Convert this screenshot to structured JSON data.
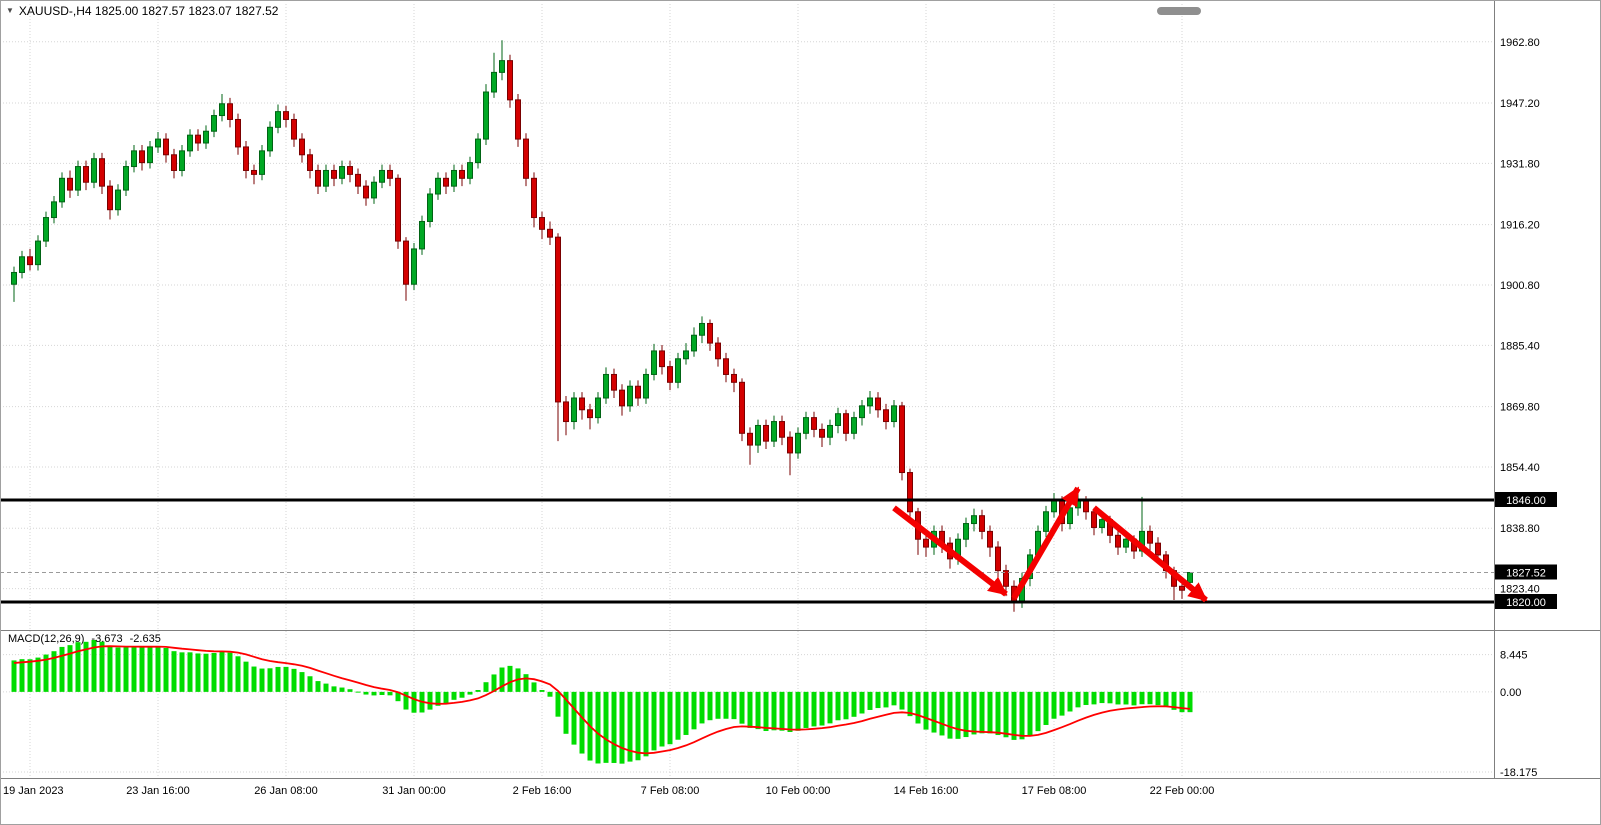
{
  "window": {
    "title": "XAUUSD-,H4 1825.00 1827.57 1823.07 1827.52"
  },
  "colors": {
    "bull": "#00a824",
    "bull_dark": "#006414",
    "bear": "#d40000",
    "bear_dark": "#7a0000",
    "grid": "#d6d6d6",
    "level": "#000000",
    "badge_bg": "#000000",
    "badge_text": "#ffffff",
    "macd_hist": "#00dc00",
    "macd_signal": "#ff0000",
    "arrow": "#f40000",
    "axis_text": "#000000"
  },
  "chart_data": {
    "type": "candlestick",
    "symbol": "XAUUSD-",
    "timeframe": "H4",
    "current_bar": {
      "open": 1825.0,
      "high": 1827.57,
      "low": 1823.07,
      "close": 1827.52
    },
    "price_axis_range": [
      1815,
      1973
    ],
    "price_axis_labels": [
      "1962.80",
      "1947.20",
      "1931.80",
      "1916.20",
      "1900.80",
      "1885.40",
      "1869.80",
      "1854.40",
      "1838.80",
      "1823.40"
    ],
    "price_levels": [
      {
        "price": 1846.0,
        "label": "1846.00",
        "style": "thick"
      },
      {
        "price": 1827.52,
        "label": "1827.52",
        "style": "current"
      },
      {
        "price": 1820.0,
        "label": "1820.00",
        "style": "thick"
      }
    ],
    "time_axis_labels": [
      {
        "label": "19 Jan 2023",
        "index": 2
      },
      {
        "label": "23 Jan 16:00",
        "index": 18
      },
      {
        "label": "26 Jan 08:00",
        "index": 34
      },
      {
        "label": "31 Jan 00:00",
        "index": 50
      },
      {
        "label": "2 Feb 16:00",
        "index": 66
      },
      {
        "label": "7 Feb 08:00",
        "index": 82
      },
      {
        "label": "10 Feb 00:00",
        "index": 98
      },
      {
        "label": "14 Feb 16:00",
        "index": 114
      },
      {
        "label": "17 Feb 08:00",
        "index": 130
      },
      {
        "label": "22 Feb 00:00",
        "index": 146
      }
    ],
    "macd": {
      "label": "MACD(12,26,9)",
      "value_main": "-3.673",
      "value_signal": "-2.635",
      "params": [
        12,
        26,
        9
      ],
      "axis_labels": [
        "8.445",
        "0.00",
        "-18.175"
      ],
      "axis_values": [
        8.445,
        0,
        -18.175
      ]
    },
    "annotations": {
      "arrows": [
        {
          "from_index": 110,
          "from_price": 1844.0,
          "to_index": 124,
          "to_price": 1822.0,
          "direction": "down"
        },
        {
          "from_index": 125,
          "from_price": 1821.0,
          "to_index": 133,
          "to_price": 1849.0,
          "direction": "up"
        },
        {
          "from_index": 135,
          "from_price": 1844.0,
          "to_index": 149,
          "to_price": 1820.5,
          "direction": "down"
        }
      ]
    },
    "candles": [
      [
        1901,
        1905.5,
        1896.5,
        1904
      ],
      [
        1904,
        1909.5,
        1902.5,
        1908
      ],
      [
        1908,
        1910,
        1904.5,
        1906
      ],
      [
        1906,
        1913.5,
        1904.5,
        1912
      ],
      [
        1912,
        1919.5,
        1910.5,
        1918
      ],
      [
        1918,
        1923.5,
        1916.5,
        1922
      ],
      [
        1922,
        1929.5,
        1920.5,
        1928
      ],
      [
        1928,
        1930,
        1923,
        1925
      ],
      [
        1925,
        1932.5,
        1923.5,
        1931
      ],
      [
        1931,
        1932.5,
        1925,
        1927
      ],
      [
        1927,
        1934.5,
        1925.5,
        1933
      ],
      [
        1933,
        1934.5,
        1924,
        1926
      ],
      [
        1926,
        1927.5,
        1917.5,
        1920
      ],
      [
        1920,
        1926.5,
        1918.5,
        1925
      ],
      [
        1925,
        1932.5,
        1923.5,
        1931
      ],
      [
        1931,
        1936.5,
        1929.5,
        1935
      ],
      [
        1935,
        1936.5,
        1930,
        1932
      ],
      [
        1932,
        1937.5,
        1930.5,
        1936
      ],
      [
        1936,
        1939.8,
        1934.5,
        1938
      ],
      [
        1938,
        1939.5,
        1932,
        1934
      ],
      [
        1934,
        1935.5,
        1928,
        1930
      ],
      [
        1930,
        1936.5,
        1928.5,
        1935
      ],
      [
        1935,
        1940.5,
        1933.5,
        1939
      ],
      [
        1939,
        1940.5,
        1935,
        1937
      ],
      [
        1937,
        1941.5,
        1935.5,
        1940
      ],
      [
        1940,
        1945.5,
        1938.5,
        1944
      ],
      [
        1944,
        1949.5,
        1942.5,
        1947
      ],
      [
        1947,
        1948.5,
        1941,
        1943
      ],
      [
        1943,
        1944.5,
        1934,
        1936
      ],
      [
        1936,
        1937.5,
        1928,
        1930
      ],
      [
        1930,
        1931.5,
        1926.5,
        1929
      ],
      [
        1929,
        1936.5,
        1927.5,
        1935
      ],
      [
        1935,
        1942.5,
        1933.5,
        1941
      ],
      [
        1941,
        1946.8,
        1939.5,
        1945
      ],
      [
        1945,
        1946.5,
        1941,
        1943
      ],
      [
        1943,
        1944.5,
        1936,
        1938
      ],
      [
        1938,
        1939.5,
        1932,
        1934
      ],
      [
        1934,
        1935.5,
        1928,
        1930
      ],
      [
        1930,
        1931.5,
        1924,
        1926
      ],
      [
        1926,
        1931.5,
        1924.5,
        1930
      ],
      [
        1930,
        1931.5,
        1926,
        1928
      ],
      [
        1928,
        1932.5,
        1926.5,
        1931
      ],
      [
        1931,
        1932.5,
        1927,
        1929
      ],
      [
        1929,
        1930.5,
        1924,
        1926
      ],
      [
        1926,
        1927.5,
        1921,
        1923
      ],
      [
        1923,
        1928.5,
        1921.5,
        1927
      ],
      [
        1927,
        1931.5,
        1925.5,
        1930
      ],
      [
        1930,
        1931.5,
        1926,
        1928
      ],
      [
        1928,
        1929,
        1910,
        1912
      ],
      [
        1912,
        1913,
        1896.8,
        1901
      ],
      [
        1901,
        1911.5,
        1899.5,
        1910
      ],
      [
        1910,
        1918.5,
        1908.5,
        1917
      ],
      [
        1917,
        1925.5,
        1915.5,
        1924
      ],
      [
        1924,
        1929.5,
        1922.5,
        1928
      ],
      [
        1928,
        1929.5,
        1924,
        1926
      ],
      [
        1926,
        1931.5,
        1924.5,
        1930
      ],
      [
        1930,
        1931.5,
        1926,
        1928
      ],
      [
        1928,
        1933.5,
        1926.5,
        1932
      ],
      [
        1932,
        1939.5,
        1930.5,
        1938
      ],
      [
        1938,
        1952,
        1936.5,
        1950
      ],
      [
        1950,
        1960,
        1948.5,
        1955
      ],
      [
        1955,
        1963.2,
        1953,
        1958
      ],
      [
        1958,
        1959.5,
        1946,
        1948
      ],
      [
        1948,
        1949.5,
        1936,
        1938
      ],
      [
        1938,
        1939.5,
        1926,
        1928
      ],
      [
        1928,
        1929.5,
        1915.5,
        1918
      ],
      [
        1918,
        1919.5,
        1912.5,
        1915
      ],
      [
        1915,
        1917,
        1911,
        1913
      ],
      [
        1913,
        1914,
        1861,
        1871
      ],
      [
        1871,
        1872.5,
        1862.5,
        1866
      ],
      [
        1866,
        1873.5,
        1864,
        1872
      ],
      [
        1872,
        1873.5,
        1866.5,
        1869
      ],
      [
        1869,
        1870.5,
        1864,
        1867
      ],
      [
        1867,
        1873.5,
        1865.5,
        1872
      ],
      [
        1872,
        1879.8,
        1870.5,
        1878
      ],
      [
        1878,
        1879.5,
        1872,
        1874
      ],
      [
        1874,
        1875.5,
        1867.5,
        1870
      ],
      [
        1870,
        1876.5,
        1868.5,
        1875
      ],
      [
        1875,
        1876.5,
        1870,
        1872
      ],
      [
        1872,
        1879.5,
        1870.5,
        1878
      ],
      [
        1878,
        1885.8,
        1876.5,
        1884
      ],
      [
        1884,
        1885.5,
        1878,
        1880
      ],
      [
        1880,
        1881.5,
        1874,
        1876
      ],
      [
        1876,
        1883.5,
        1874.5,
        1882
      ],
      [
        1882,
        1886,
        1880.5,
        1884
      ],
      [
        1884,
        1890,
        1882.5,
        1888
      ],
      [
        1888,
        1892.8,
        1886,
        1891
      ],
      [
        1891,
        1892,
        1884,
        1886
      ],
      [
        1886,
        1887.5,
        1880,
        1882
      ],
      [
        1882,
        1883.5,
        1876,
        1878
      ],
      [
        1878,
        1879.5,
        1873.5,
        1876
      ],
      [
        1876,
        1877,
        1861,
        1863
      ],
      [
        1863,
        1864.5,
        1855,
        1860
      ],
      [
        1860,
        1866.5,
        1858,
        1865
      ],
      [
        1865,
        1866.5,
        1859,
        1861
      ],
      [
        1861,
        1867.5,
        1859.5,
        1866
      ],
      [
        1866,
        1867.5,
        1860,
        1862
      ],
      [
        1862,
        1863.5,
        1852.3,
        1858
      ],
      [
        1858,
        1864.5,
        1856.5,
        1863
      ],
      [
        1863,
        1868.5,
        1861.5,
        1867
      ],
      [
        1867,
        1868.5,
        1862,
        1864
      ],
      [
        1864,
        1865.5,
        1859.5,
        1862
      ],
      [
        1862,
        1866.5,
        1860,
        1865
      ],
      [
        1865,
        1869.5,
        1863,
        1868
      ],
      [
        1868,
        1869,
        1861,
        1863
      ],
      [
        1863,
        1868.5,
        1861.5,
        1867
      ],
      [
        1867,
        1871.5,
        1865,
        1870
      ],
      [
        1870,
        1873.8,
        1868,
        1872
      ],
      [
        1872,
        1873.5,
        1867,
        1869
      ],
      [
        1869,
        1870.5,
        1864,
        1866
      ],
      [
        1866,
        1871.5,
        1864.5,
        1870
      ],
      [
        1870,
        1871,
        1851,
        1853
      ],
      [
        1853,
        1854,
        1840.5,
        1843
      ],
      [
        1843,
        1844,
        1832,
        1836
      ],
      [
        1836,
        1838,
        1831.5,
        1834
      ],
      [
        1834,
        1839.5,
        1832,
        1838
      ],
      [
        1838,
        1839.5,
        1832.5,
        1835
      ],
      [
        1835,
        1836.5,
        1828.5,
        1831
      ],
      [
        1831,
        1837.5,
        1829.5,
        1836
      ],
      [
        1836,
        1841.5,
        1834,
        1840
      ],
      [
        1840,
        1843.8,
        1838,
        1842
      ],
      [
        1842,
        1843.5,
        1836,
        1838
      ],
      [
        1838,
        1839.5,
        1831.5,
        1834
      ],
      [
        1834,
        1835.5,
        1826,
        1828
      ],
      [
        1828,
        1829.5,
        1821.5,
        1824
      ],
      [
        1824,
        1825.5,
        1817.5,
        1820
      ],
      [
        1820,
        1827.5,
        1818.5,
        1826
      ],
      [
        1826,
        1833.5,
        1824,
        1832
      ],
      [
        1832,
        1839.5,
        1830.5,
        1838
      ],
      [
        1838,
        1844.5,
        1836.5,
        1843
      ],
      [
        1843,
        1847.8,
        1841.5,
        1846
      ],
      [
        1846,
        1847,
        1838,
        1840
      ],
      [
        1840,
        1845.8,
        1838.5,
        1844
      ],
      [
        1844,
        1848,
        1842,
        1846
      ],
      [
        1846,
        1847,
        1841,
        1843
      ],
      [
        1843,
        1844,
        1837,
        1839
      ],
      [
        1839,
        1842.5,
        1837.5,
        1841
      ],
      [
        1841,
        1842,
        1835,
        1837
      ],
      [
        1837,
        1838.5,
        1832,
        1834
      ],
      [
        1834,
        1837.5,
        1832.5,
        1836
      ],
      [
        1836,
        1837,
        1831,
        1833
      ],
      [
        1833,
        1846.8,
        1831.5,
        1838
      ],
      [
        1838,
        1839.5,
        1833,
        1835
      ],
      [
        1835,
        1836.5,
        1830,
        1832
      ],
      [
        1832,
        1833,
        1826,
        1828
      ],
      [
        1828,
        1829,
        1820.5,
        1824
      ],
      [
        1824,
        1825.5,
        1820.8,
        1823
      ],
      [
        1825,
        1827.57,
        1823.07,
        1827.52
      ]
    ]
  }
}
